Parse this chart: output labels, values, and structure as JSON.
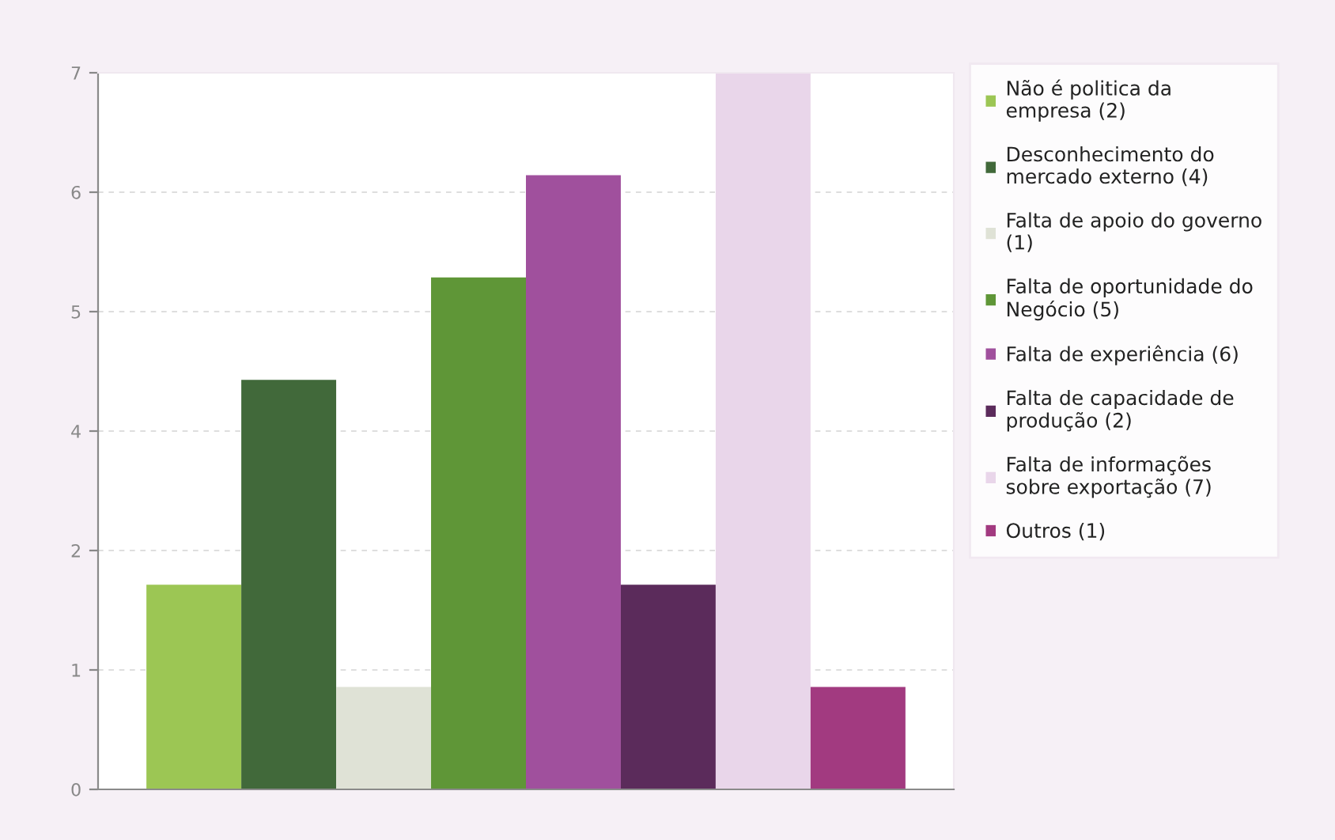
{
  "chart_data": {
    "type": "bar",
    "categories": [
      null
    ],
    "series": [
      {
        "name": "Não é politica da\nempresa (2)",
        "color": "#9cc654",
        "values": [
          2
        ]
      },
      {
        "name": "Desconhecimento do\nmercado externo (4)",
        "color": "#41693a",
        "values": [
          4
        ]
      },
      {
        "name": "Falta de apoio do governo\n(1)",
        "color": "#dfe2d6",
        "values": [
          1
        ]
      },
      {
        "name": "Falta de oportunidade do\nNegócio (5)",
        "color": "#5f9637",
        "values": [
          5
        ]
      },
      {
        "name": "Falta de experiência (6)",
        "color": "#a0509d",
        "values": [
          6
        ]
      },
      {
        "name": "Falta de capacidade de\nprodução (2)",
        "color": "#5b2b5b",
        "values": [
          2
        ]
      },
      {
        "name": "Falta de informações\nsobre exportação (7)",
        "color": "#e9d6ea",
        "values": [
          7
        ]
      },
      {
        "name": "Outros (1)",
        "color": "#a23a80",
        "values": [
          1
        ]
      }
    ],
    "ylim": [
      0,
      7
    ],
    "yticks": [
      0,
      {
        "value": 1.1667,
        "label": "1"
      },
      {
        "value": 2.3333,
        "label": "2"
      },
      {
        "value": 3.5,
        "label": "4"
      },
      {
        "value": 4.6667,
        "label": "5"
      },
      {
        "value": 5.8333,
        "label": "6"
      },
      7
    ],
    "grid": "y",
    "legend": "right"
  }
}
